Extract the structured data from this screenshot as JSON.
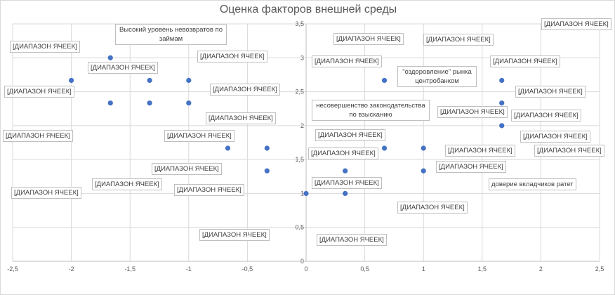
{
  "chart_data": {
    "type": "scatter",
    "title": "Оценка факторов внешней среды",
    "xlabel": "",
    "ylabel": "",
    "xlim": [
      -2.5,
      2.5
    ],
    "ylim": [
      0,
      3.5
    ],
    "x_ticks": [
      "-2,5",
      "-2",
      "-1,5",
      "-1",
      "-0,5",
      "0",
      "0,5",
      "1",
      "1,5",
      "2",
      "2,5"
    ],
    "y_ticks": [
      "0",
      "0,5",
      "1",
      "1,5",
      "2",
      "2,5",
      "3",
      "3,5"
    ],
    "grid": true,
    "marker_color": "#4472C4",
    "points": [
      {
        "x": -1.667,
        "y": 3
      },
      {
        "x": -2,
        "y": 2.667
      },
      {
        "x": -1.333,
        "y": 2.667
      },
      {
        "x": -1,
        "y": 2.667
      },
      {
        "x": -1.667,
        "y": 2.333
      },
      {
        "x": -1.333,
        "y": 2.333
      },
      {
        "x": -1,
        "y": 2.333
      },
      {
        "x": -0.667,
        "y": 1.667
      },
      {
        "x": -0.333,
        "y": 1.667
      },
      {
        "x": -0.333,
        "y": 1.333
      },
      {
        "x": 0,
        "y": 1
      },
      {
        "x": 0.333,
        "y": 1
      },
      {
        "x": 0.333,
        "y": 1.333
      },
      {
        "x": 0.667,
        "y": 1.667
      },
      {
        "x": 1,
        "y": 1.667
      },
      {
        "x": 1,
        "y": 1.333
      },
      {
        "x": 0.667,
        "y": 2.667
      },
      {
        "x": 1.667,
        "y": 2.667
      },
      {
        "x": 1.667,
        "y": 2.333
      },
      {
        "x": 1.667,
        "y": 2
      }
    ],
    "annotations": [
      "Высокий уровень невозвратов по займам",
      "[ДИАПАЗОН ЯЧЕЕК]",
      "[ДИАПАЗОН ЯЧЕЕК]",
      "[ДИАПАЗОН ЯЧЕЕК]",
      "[ДИАПАЗОН ЯЧЕЕК]",
      "[ДИАПАЗОН ЯЧЕЕК]",
      "[ДИАПАЗОН ЯЧЕЕК]",
      "[ДИАПАЗОН ЯЧЕЕК]",
      "[ДИАПАЗОН ЯЧЕЕК]",
      "[ДИАПАЗОН ЯЧЕЕК]",
      "[ДИАПАЗОН ЯЧЕЕК]",
      "[ДИАПАЗОН ЯЧЕЕК]",
      "[ДИАПАЗОН ЯЧЕЕК]",
      "[ДИАПАЗОН ЯЧЕЕК]",
      "\"оздоровление\" рынка центробанком",
      "[ДИАПАЗОН ЯЧЕЕК]",
      "несовершенство законодательства по взысканию",
      "[ДИАПАЗОН ЯЧЕЕК]",
      "[ДИАПАЗОН ЯЧЕЕК]",
      "[ДИАПАЗОН ЯЧЕЕК]",
      "[ДИАПАЗОН ЯЧЕЕК]",
      "[ДИАПАЗОН ЯЧЕЕК]",
      "[ДИАПАЗОН ЯЧЕЕК]",
      "[ДИАПАЗОН ЯЧЕЕК]",
      "[ДИАПАЗОН ЯЧЕЕК]",
      "[ДИАПАЗОН ЯЧЕЕК]",
      "[ДИАПАЗОН ЯЧЕЕК]",
      "[ДИАПАЗОН ЯЧЕЕК]",
      "доверие вкладчиков ратет",
      "[ДИАПАЗОН ЯЧЕЕК]",
      "[ДИАПАЗОН ЯЧЕЕК]",
      "[ДИАПАЗОН ЯЧЕЕК]",
      "[ДИАПАЗОН ЯЧЕЕК]",
      "[ДИАПАЗОН ЯЧЕЕК]"
    ]
  }
}
